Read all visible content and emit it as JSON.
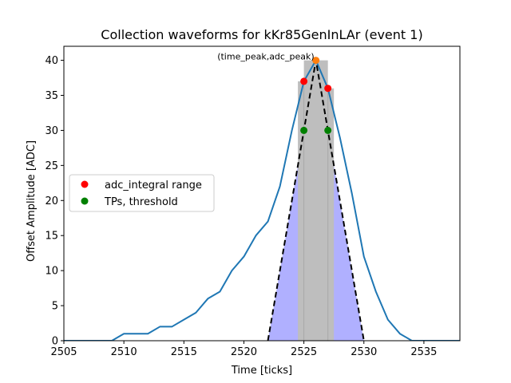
{
  "chart_data": {
    "type": "line",
    "title": "Collection waveforms for kKr85GenInLAr (event 1)",
    "xlabel": "Time [ticks]",
    "ylabel": "Offset Amplitude [ADC]",
    "xlim": [
      2505,
      2538
    ],
    "ylim": [
      0,
      42
    ],
    "x_ticks": [
      2505,
      2510,
      2515,
      2520,
      2525,
      2530,
      2535
    ],
    "y_ticks": [
      0,
      5,
      10,
      15,
      20,
      25,
      30,
      35,
      40
    ],
    "grid": false,
    "legend_position": "center-left",
    "waveform": {
      "color": "#1f77b4",
      "x": [
        2505,
        2506,
        2507,
        2508,
        2509,
        2510,
        2511,
        2512,
        2513,
        2514,
        2515,
        2516,
        2517,
        2518,
        2519,
        2520,
        2521,
        2522,
        2523,
        2524,
        2525,
        2526,
        2527,
        2528,
        2529,
        2530,
        2531,
        2532,
        2533,
        2534,
        2535,
        2536,
        2537,
        2538
      ],
      "y": [
        0,
        0,
        0,
        0,
        0,
        1,
        1,
        1,
        2,
        2,
        3,
        4,
        6,
        7,
        10,
        12,
        15,
        17,
        22,
        30,
        37,
        40,
        36,
        29,
        21,
        12,
        7,
        3,
        1,
        0,
        0,
        0,
        0,
        0
      ]
    },
    "integral_fill": {
      "color": "#b0b0ff",
      "x": [
        2522,
        2526,
        2530
      ],
      "y": [
        0,
        40,
        0
      ]
    },
    "peak_band": {
      "color": "#bebebe",
      "x": [
        2524.5,
        2525,
        2525,
        2527,
        2527,
        2527.5
      ],
      "y": [
        37,
        37,
        40,
        40,
        36,
        36
      ]
    },
    "triangle": {
      "color": "#000000",
      "x": [
        2522,
        2526,
        2530
      ],
      "y": [
        0,
        40,
        0
      ]
    },
    "peak_marker": {
      "color": "#ff7f0e",
      "x": 2526,
      "y": 40,
      "label": "(time_peak,adc_peak)"
    },
    "series": [
      {
        "name": "adc_integral range",
        "color": "#ff0000",
        "x": [
          2525,
          2527
        ],
        "y": [
          37,
          36
        ]
      },
      {
        "name": "TPs, threshold",
        "color": "#008000",
        "x": [
          2525,
          2527
        ],
        "y": [
          30,
          30
        ]
      }
    ]
  }
}
